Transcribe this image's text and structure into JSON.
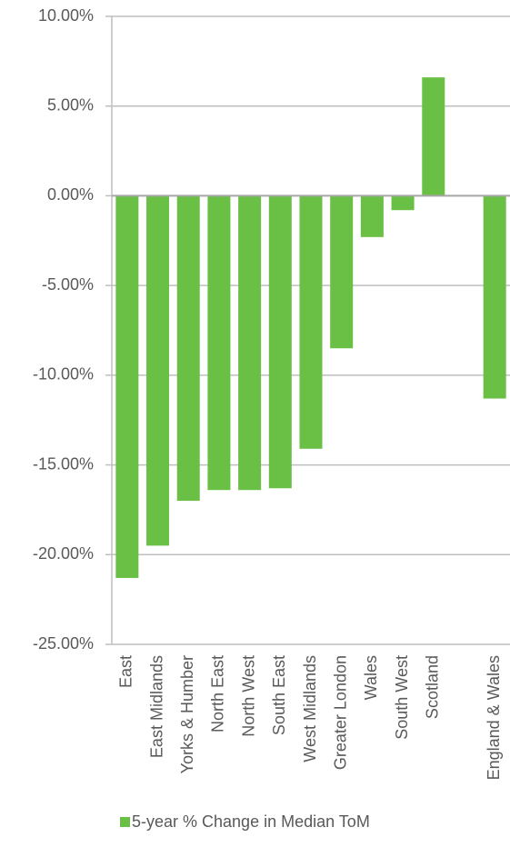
{
  "chart_data": {
    "type": "bar",
    "categories": [
      "East",
      "East Midlands",
      "Yorks & Humber",
      "North East",
      "North West",
      "South East",
      "West Midlands",
      "Greater London",
      "Wales",
      "South West",
      "Scotland",
      null,
      "England & Wales"
    ],
    "series": [
      {
        "name": "5-year % Change in Median ToM",
        "color": "#6abf45",
        "values": [
          -21.3,
          -19.5,
          -17.0,
          -16.4,
          -16.4,
          -16.3,
          -14.1,
          -8.5,
          -2.3,
          -0.8,
          6.6,
          null,
          -11.3
        ]
      }
    ],
    "ylim": [
      -25,
      10
    ],
    "yticks": [
      {
        "value": -25,
        "label": "-25.00%"
      },
      {
        "value": -20,
        "label": "-20.00%"
      },
      {
        "value": -15,
        "label": "-15.00%"
      },
      {
        "value": -10,
        "label": "-10.00%"
      },
      {
        "value": -5,
        "label": "-5.00%"
      },
      {
        "value": 0,
        "label": "0.00%"
      },
      {
        "value": 5,
        "label": "5.00%"
      },
      {
        "value": 10,
        "label": "10.00%"
      }
    ],
    "grid": true,
    "legend": "bottom"
  }
}
